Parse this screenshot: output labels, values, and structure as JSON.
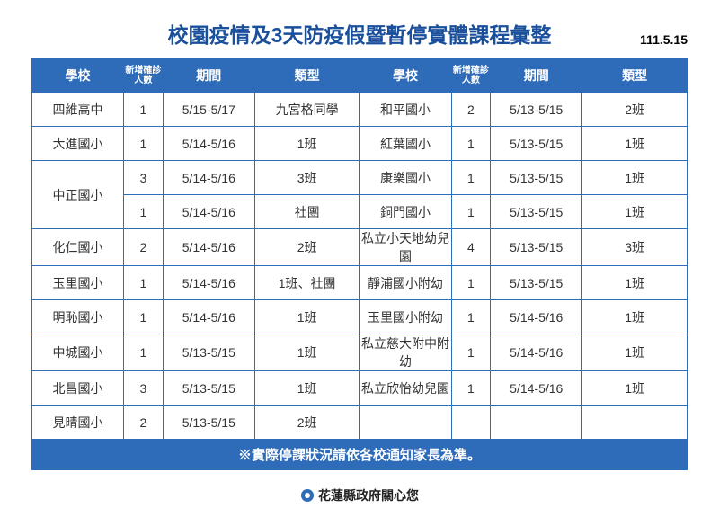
{
  "header": {
    "title": "校園疫情及3天防疫假暨暫停實體課程彙整",
    "date_stamp": "111.5.15"
  },
  "columns": {
    "school": "學校",
    "count": "新增確診人數",
    "period": "期間",
    "type": "類型"
  },
  "rows_left": [
    {
      "school": "四維高中",
      "count": "1",
      "period": "5/15-5/17",
      "type": "九宮格同學",
      "rowspan": 1
    },
    {
      "school": "大進國小",
      "count": "1",
      "period": "5/14-5/16",
      "type": "1班",
      "rowspan": 1
    },
    {
      "school": "中正國小",
      "count": "3",
      "period": "5/14-5/16",
      "type": "3班",
      "rowspan": 2
    },
    {
      "school": "",
      "count": "1",
      "period": "5/14-5/16",
      "type": "社團",
      "rowspan": 0
    },
    {
      "school": "化仁國小",
      "count": "2",
      "period": "5/14-5/16",
      "type": "2班",
      "rowspan": 1
    },
    {
      "school": "玉里國小",
      "count": "1",
      "period": "5/14-5/16",
      "type": "1班、社團",
      "rowspan": 1
    },
    {
      "school": "明恥國小",
      "count": "1",
      "period": "5/14-5/16",
      "type": "1班",
      "rowspan": 1
    },
    {
      "school": "中城國小",
      "count": "1",
      "period": "5/13-5/15",
      "type": "1班",
      "rowspan": 1
    },
    {
      "school": "北昌國小",
      "count": "3",
      "period": "5/13-5/15",
      "type": "1班",
      "rowspan": 1
    },
    {
      "school": "見晴國小",
      "count": "2",
      "period": "5/13-5/15",
      "type": "2班",
      "rowspan": 1
    }
  ],
  "rows_right": [
    {
      "school": "和平國小",
      "count": "2",
      "period": "5/13-5/15",
      "type": "2班"
    },
    {
      "school": "紅葉國小",
      "count": "1",
      "period": "5/13-5/15",
      "type": "1班"
    },
    {
      "school": "康樂國小",
      "count": "1",
      "period": "5/13-5/15",
      "type": "1班"
    },
    {
      "school": "銅門國小",
      "count": "1",
      "period": "5/13-5/15",
      "type": "1班"
    },
    {
      "school": "私立小天地幼兒園",
      "count": "4",
      "period": "5/13-5/15",
      "type": "3班"
    },
    {
      "school": "靜浦國小附幼",
      "count": "1",
      "period": "5/13-5/15",
      "type": "1班"
    },
    {
      "school": "玉里國小附幼",
      "count": "1",
      "period": "5/14-5/16",
      "type": "1班"
    },
    {
      "school": "私立慈大附中附幼",
      "count": "1",
      "period": "5/14-5/16",
      "type": "1班"
    },
    {
      "school": "私立欣怡幼兒園",
      "count": "1",
      "period": "5/14-5/16",
      "type": "1班"
    },
    {
      "school": "",
      "count": "",
      "period": "",
      "type": ""
    }
  ],
  "footer_note": "※實際停課狀況請依各校通知家長為準。",
  "signature": "花蓮縣政府關心您",
  "colors": {
    "header_bg": "#2e6bb8",
    "header_text": "#ffffff",
    "title_text": "#1a4f9c",
    "border": "#2e6bb8",
    "cell_text": "#333333",
    "page_bg": "#ffffff"
  }
}
